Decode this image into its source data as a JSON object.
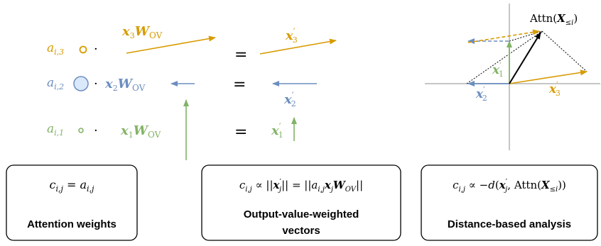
{
  "colors": {
    "orange": "#d79b00",
    "blue": "#6c8ebf",
    "green": "#82b366",
    "blue_fill": "#dae8fc"
  },
  "left_panel": {
    "row3": {
      "weight_a": "a",
      "weight_sub": "i,3",
      "dot": "·",
      "vec_x": "x",
      "vec_x_sub": "3",
      "vec_W": "W",
      "vec_W_sub": "OV",
      "equals": "=",
      "result_x": "x",
      "result_prime": "′",
      "result_sub": "3"
    },
    "row2": {
      "weight_a": "a",
      "weight_sub": "i,2",
      "dot": "·",
      "vec_x": "x",
      "vec_x_sub": "2",
      "vec_W": "W",
      "vec_W_sub": "OV",
      "equals": "=",
      "result_x": "x",
      "result_prime": "′",
      "result_sub": "2"
    },
    "row1": {
      "weight_a": "a",
      "weight_sub": "i,1",
      "dot": "·",
      "vec_x": "x",
      "vec_x_sub": "1",
      "vec_W": "W",
      "vec_W_sub": "OV",
      "equals": "=",
      "result_x": "x",
      "result_prime": "′",
      "result_sub": "1"
    }
  },
  "right_panel": {
    "attn_label": "Attn(",
    "attn_X": "X",
    "attn_sub": "≤i",
    "attn_close": ")",
    "label_x1": "x",
    "label_x1_prime": "′",
    "label_x1_sub": "1",
    "label_x2": "x",
    "label_x2_prime": "′",
    "label_x2_sub": "2",
    "label_x3": "x",
    "label_x3_prime": "′",
    "label_x3_sub": "3"
  },
  "boxes": [
    {
      "formula": "c_{i,j} = a_{i,j}",
      "title": "Attention weights",
      "title_line2": ""
    },
    {
      "formula": "c_{i,j} ∝ ||x′_j|| = ||a_{i,j} x_j W_{OV}||",
      "title": "Output-value-weighted",
      "title_line2": "vectors"
    },
    {
      "formula": "c_{i,j} ∝ −d(x′_j, Attn(X_{≤i}))",
      "title": "Distance-based analysis",
      "title_line2": ""
    }
  ]
}
